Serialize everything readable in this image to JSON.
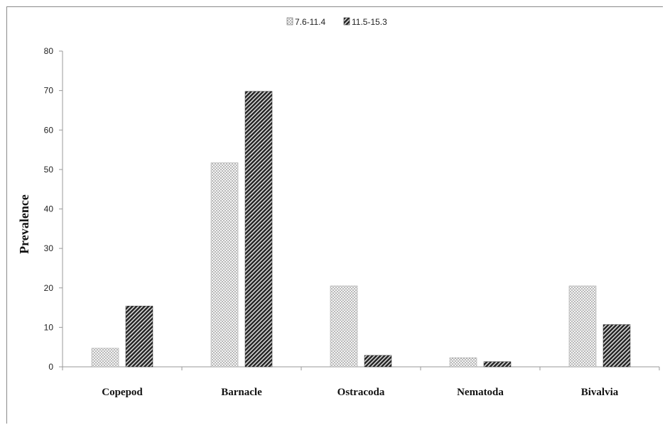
{
  "chart_data": {
    "type": "bar",
    "title": "",
    "xlabel": "",
    "ylabel": "Prevalence",
    "ylim": [
      0,
      80
    ],
    "yticks": [
      0,
      10,
      20,
      30,
      40,
      50,
      60,
      70,
      80
    ],
    "grid": false,
    "legend_position": "top-center",
    "categories": [
      "Copepod",
      "Barnacle",
      "Ostracoda",
      "Nematoda",
      "Bivalvia"
    ],
    "series": [
      {
        "name": "7.6-11.4",
        "values": [
          4.7,
          51.7,
          20.5,
          2.3,
          20.5
        ],
        "color": "#b5b5b5",
        "pattern": "light-dotted"
      },
      {
        "name": "11.5-15.3",
        "values": [
          15.4,
          69.8,
          2.9,
          1.3,
          10.7
        ],
        "color": "#3a3a3a",
        "pattern": "dark-diagonal"
      }
    ]
  }
}
